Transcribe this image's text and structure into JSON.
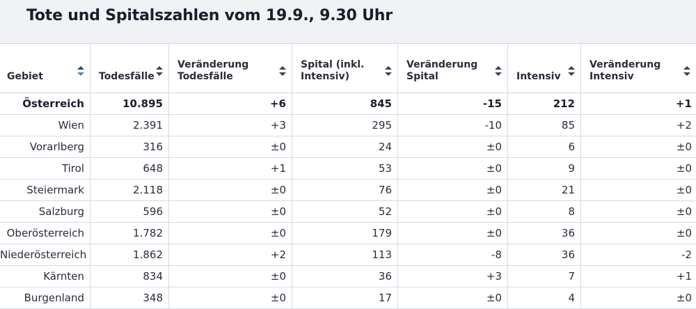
{
  "title": "Tote und Spitalszahlen vom 19.9., 9.30 Uhr",
  "columns": [
    {
      "label": "Gebiet",
      "sort_icon": "sort-icon-active"
    },
    {
      "label": "Todesfälle",
      "sort_icon": "sort-icon"
    },
    {
      "label": "Veränderung\nTodesfälle",
      "sort_icon": "sort-icon"
    },
    {
      "label": "Spital (inkl.\nIntensiv)",
      "sort_icon": "sort-icon"
    },
    {
      "label": "Veränderung\nSpital",
      "sort_icon": "sort-icon"
    },
    {
      "label": "Intensiv",
      "sort_icon": "sort-icon"
    },
    {
      "label": "Veränderung\nIntensiv",
      "sort_icon": "sort-icon"
    }
  ],
  "rows": [
    {
      "cells": [
        "Österreich",
        "10.895",
        "+6",
        "845",
        "-15",
        "212",
        "+1"
      ],
      "bold": true
    },
    {
      "cells": [
        "Wien",
        "2.391",
        "+3",
        "295",
        "-10",
        "85",
        "+2"
      ]
    },
    {
      "cells": [
        "Vorarlberg",
        "316",
        "±0",
        "24",
        "±0",
        "6",
        "±0"
      ]
    },
    {
      "cells": [
        "Tirol",
        "648",
        "+1",
        "53",
        "±0",
        "9",
        "±0"
      ]
    },
    {
      "cells": [
        "Steiermark",
        "2.118",
        "±0",
        "76",
        "±0",
        "21",
        "±0"
      ]
    },
    {
      "cells": [
        "Salzburg",
        "596",
        "±0",
        "52",
        "±0",
        "8",
        "±0"
      ]
    },
    {
      "cells": [
        "Oberösterreich",
        "1.782",
        "±0",
        "179",
        "±0",
        "36",
        "±0"
      ]
    },
    {
      "cells": [
        "Niederösterreich",
        "1.862",
        "+2",
        "113",
        "-8",
        "36",
        "-2"
      ]
    },
    {
      "cells": [
        "Kärnten",
        "834",
        "±0",
        "36",
        "+3",
        "7",
        "+1"
      ]
    },
    {
      "cells": [
        "Burgenland",
        "348",
        "±0",
        "17",
        "±0",
        "4",
        "±0"
      ]
    }
  ],
  "colors": {
    "header_bg": "#f1f2f6",
    "active_sort": "#2f8fe0",
    "border": "#d7dae2"
  }
}
